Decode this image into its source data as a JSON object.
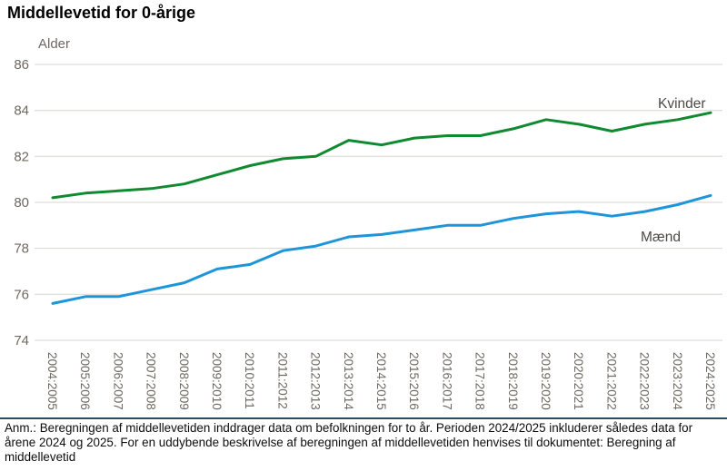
{
  "title": "Middellevetid for 0-årige",
  "footnote": "Anm.: Beregningen af middellevetiden inddrager data om befolkningen for to år. Perioden 2024/2025 inkluderer således data for årene 2024 og 2025. For en uddybende beskrivelse af beregningen af middellevetiden henvises til dokumentet: Beregning af middellevetid",
  "colors": {
    "grid": "#d9d6ce",
    "axis_text": "#6e6a62",
    "series_label_text": "#4c4a45",
    "divider": "#2e4a58",
    "kvinder_green": "#108a30",
    "maend_blue": "#1e95d8"
  },
  "chart_data": {
    "type": "line",
    "title": "Middellevetid for 0-årige",
    "xlabel": "",
    "ylabel": "Alder",
    "ylim": [
      74,
      86
    ],
    "yticks": [
      86,
      84,
      82,
      80,
      78,
      76,
      74
    ],
    "grid": true,
    "legend_position": "inline-end-of-line-labels",
    "categories": [
      "2004:2005",
      "2005:2006",
      "2006:2007",
      "2007:2008",
      "2008:2009",
      "2009:2010",
      "2010:2011",
      "2011:2012",
      "2012:2013",
      "2013:2014",
      "2014:2015",
      "2015:2016",
      "2016:2017",
      "2017:2018",
      "2018:2019",
      "2019:2020",
      "2020:2021",
      "2021:2022",
      "2022:2023",
      "2023:2024",
      "2024:2025"
    ],
    "series": [
      {
        "name": "Kvinder",
        "color": "#108a30",
        "values": [
          80.2,
          80.4,
          80.5,
          80.6,
          80.8,
          81.2,
          81.6,
          81.9,
          82.0,
          82.7,
          82.5,
          82.8,
          82.9,
          82.9,
          83.2,
          83.6,
          83.4,
          83.1,
          83.4,
          83.6,
          83.9
        ]
      },
      {
        "name": "Mænd",
        "color": "#1e95d8",
        "values": [
          75.6,
          75.9,
          75.9,
          76.2,
          76.5,
          77.1,
          77.3,
          77.9,
          78.1,
          78.5,
          78.6,
          78.8,
          79.0,
          79.0,
          79.3,
          79.5,
          79.6,
          79.4,
          79.6,
          79.9,
          80.3
        ]
      }
    ]
  }
}
